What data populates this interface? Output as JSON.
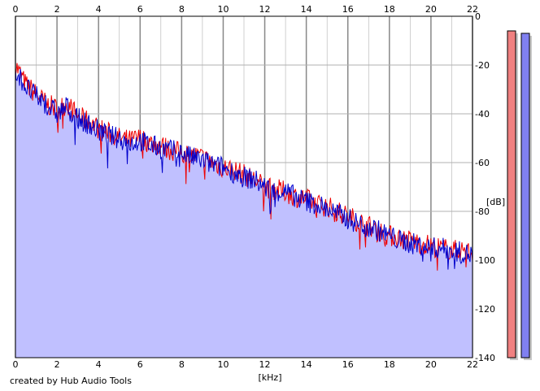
{
  "chart_data": {
    "type": "area",
    "x_label": "[kHz]",
    "y_label": "[dB]",
    "x_ticks": [
      "0",
      "2",
      "4",
      "6",
      "8",
      "10",
      "12",
      "14",
      "16",
      "18",
      "20",
      "22"
    ],
    "y_ticks": [
      "0",
      "-20",
      "-40",
      "-60",
      "-80",
      "-100",
      "-120",
      "-140"
    ],
    "xlim": [
      0,
      22
    ],
    "ylim": [
      -140,
      0
    ],
    "grid": true,
    "series": [
      {
        "color": "#ee0000",
        "x": [
          0,
          0.5,
          1,
          1.5,
          2,
          2.5,
          3,
          3.5,
          4,
          4.5,
          5,
          5.5,
          6,
          6.5,
          7,
          7.5,
          8,
          8.5,
          9,
          9.5,
          10,
          10.5,
          11,
          11.5,
          12,
          12.5,
          13,
          13.5,
          14,
          14.5,
          15,
          15.5,
          16,
          16.5,
          17,
          17.5,
          18,
          18.5,
          19,
          19.5,
          20,
          20.5,
          21,
          21.5,
          22
        ],
        "values": [
          -20,
          -28,
          -32,
          -36,
          -38,
          -36,
          -41,
          -43,
          -46,
          -48,
          -50,
          -51,
          -50,
          -52,
          -53,
          -55,
          -56,
          -57,
          -58,
          -60,
          -62,
          -63,
          -65,
          -67,
          -70,
          -71,
          -72,
          -74,
          -75,
          -77,
          -78,
          -80,
          -82,
          -84,
          -86,
          -88,
          -90,
          -91,
          -92,
          -93,
          -94,
          -95,
          -96,
          -96,
          -97
        ]
      },
      {
        "color": "#0000cc",
        "x": [
          0,
          0.5,
          1,
          1.5,
          2,
          2.5,
          3,
          3.5,
          4,
          4.5,
          5,
          5.5,
          6,
          6.5,
          7,
          7.5,
          8,
          8.5,
          9,
          9.5,
          10,
          10.5,
          11,
          11.5,
          12,
          12.5,
          13,
          13.5,
          14,
          14.5,
          15,
          15.5,
          16,
          16.5,
          17,
          17.5,
          18,
          18.5,
          19,
          19.5,
          20,
          20.5,
          21,
          21.5,
          22
        ],
        "values": [
          -22,
          -29,
          -33,
          -36,
          -40,
          -37,
          -42,
          -44,
          -47,
          -49,
          -50,
          -52,
          -51,
          -53,
          -54,
          -55,
          -56,
          -58,
          -59,
          -61,
          -62,
          -64,
          -66,
          -67,
          -70,
          -72,
          -72,
          -74,
          -76,
          -77,
          -79,
          -81,
          -83,
          -85,
          -86,
          -88,
          -90,
          -92,
          -93,
          -94,
          -95,
          -95,
          -96,
          -97,
          -98
        ]
      }
    ],
    "meters": [
      {
        "color": "#f08080",
        "value": -6
      },
      {
        "color": "#8080f0",
        "value": -7
      }
    ]
  },
  "credit": "created by Hub Audio Tools",
  "colors": {
    "fill": "#c0c0ff",
    "grid": "#b0b0b0",
    "grid_major": "#888888"
  }
}
